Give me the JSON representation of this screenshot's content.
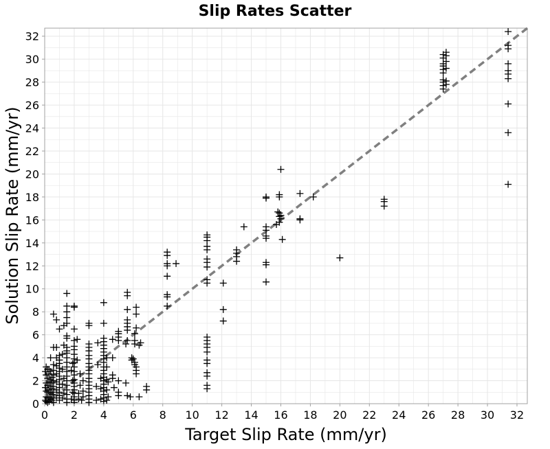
{
  "chart_data": {
    "type": "scatter",
    "title": "Slip Rates Scatter",
    "xlabel": "Target Slip Rate (mm/yr)",
    "ylabel": "Solution Slip Rate (mm/yr)",
    "xlim": [
      0,
      32.7
    ],
    "ylim": [
      0,
      32.7
    ],
    "xticks": [
      "0",
      "2",
      "4",
      "6",
      "8",
      "10",
      "12",
      "14",
      "16",
      "18",
      "20",
      "22",
      "24",
      "26",
      "28",
      "30",
      "32"
    ],
    "yticks": [
      "0",
      "2",
      "4",
      "6",
      "8",
      "10",
      "12",
      "14",
      "16",
      "18",
      "20",
      "22",
      "24",
      "26",
      "28",
      "30",
      "32"
    ],
    "grid": true,
    "marker": "+",
    "reference_line": {
      "style": "dashed",
      "color": "#808080",
      "from": [
        0,
        0
      ],
      "to": [
        32.7,
        32.7
      ]
    },
    "colors": {
      "points": "#000000",
      "reference": "#808080",
      "grid": "#e6e6e6",
      "frame": "#a0a0a0"
    },
    "points": [
      [
        27.0,
        30.4
      ],
      [
        27.0,
        30.1
      ],
      [
        27.0,
        29.6
      ],
      [
        27.0,
        29.4
      ],
      [
        27.0,
        29.1
      ],
      [
        27.0,
        28.8
      ],
      [
        27.0,
        28.2
      ],
      [
        27.0,
        28.0
      ],
      [
        27.0,
        27.7
      ],
      [
        27.0,
        27.4
      ],
      [
        27.2,
        30.6
      ],
      [
        27.2,
        30.3
      ],
      [
        27.2,
        29.8
      ],
      [
        27.2,
        29.2
      ],
      [
        27.2,
        28.1
      ],
      [
        27.2,
        27.8
      ],
      [
        31.4,
        32.4
      ],
      [
        31.4,
        31.2
      ],
      [
        31.4,
        30.9
      ],
      [
        31.4,
        29.6
      ],
      [
        31.4,
        29.0
      ],
      [
        31.4,
        28.7
      ],
      [
        31.4,
        28.3
      ],
      [
        31.4,
        26.1
      ],
      [
        31.4,
        23.6
      ],
      [
        31.4,
        19.1
      ],
      [
        23.0,
        17.8
      ],
      [
        23.0,
        17.6
      ],
      [
        23.0,
        17.2
      ],
      [
        20.0,
        12.7
      ],
      [
        18.2,
        18.0
      ],
      [
        17.3,
        18.3
      ],
      [
        17.3,
        16.1
      ],
      [
        17.3,
        16.0
      ],
      [
        16.0,
        20.4
      ],
      [
        15.9,
        18.2
      ],
      [
        15.9,
        18.0
      ],
      [
        15.9,
        16.6
      ],
      [
        15.9,
        16.3
      ],
      [
        15.9,
        15.8
      ],
      [
        16.0,
        16.4
      ],
      [
        16.0,
        16.1
      ],
      [
        16.1,
        14.3
      ],
      [
        15.8,
        16.7
      ],
      [
        15.7,
        15.6
      ],
      [
        15.0,
        18.0
      ],
      [
        15.0,
        17.9
      ],
      [
        15.0,
        15.4
      ],
      [
        15.0,
        15.1
      ],
      [
        15.0,
        14.6
      ],
      [
        15.0,
        14.4
      ],
      [
        15.0,
        12.3
      ],
      [
        15.0,
        12.1
      ],
      [
        15.0,
        10.6
      ],
      [
        13.5,
        15.4
      ],
      [
        13.0,
        13.4
      ],
      [
        13.0,
        13.1
      ],
      [
        13.0,
        12.8
      ],
      [
        13.0,
        12.4
      ],
      [
        12.1,
        10.5
      ],
      [
        12.1,
        8.2
      ],
      [
        12.1,
        7.2
      ],
      [
        11.0,
        14.7
      ],
      [
        11.0,
        14.5
      ],
      [
        11.0,
        14.2
      ],
      [
        11.0,
        13.7
      ],
      [
        11.0,
        13.4
      ],
      [
        11.0,
        12.6
      ],
      [
        11.0,
        12.3
      ],
      [
        11.0,
        11.9
      ],
      [
        11.0,
        10.8
      ],
      [
        11.0,
        10.5
      ],
      [
        11.0,
        5.8
      ],
      [
        11.0,
        5.5
      ],
      [
        11.0,
        5.2
      ],
      [
        11.0,
        4.9
      ],
      [
        11.0,
        4.5
      ],
      [
        11.0,
        3.8
      ],
      [
        11.0,
        3.5
      ],
      [
        11.0,
        2.7
      ],
      [
        11.0,
        2.4
      ],
      [
        11.0,
        1.6
      ],
      [
        11.0,
        1.3
      ],
      [
        8.9,
        12.2
      ],
      [
        8.3,
        13.2
      ],
      [
        8.3,
        12.9
      ],
      [
        8.3,
        12.2
      ],
      [
        8.3,
        12.0
      ],
      [
        8.3,
        11.1
      ],
      [
        8.3,
        9.5
      ],
      [
        8.3,
        9.3
      ],
      [
        8.3,
        8.5
      ],
      [
        6.9,
        1.5
      ],
      [
        6.9,
        1.2
      ],
      [
        6.4,
        0.6
      ],
      [
        6.5,
        5.3
      ],
      [
        6.4,
        5.1
      ],
      [
        6.2,
        8.4
      ],
      [
        6.2,
        7.8
      ],
      [
        6.2,
        6.6
      ],
      [
        6.1,
        6.1
      ],
      [
        6.1,
        5.5
      ],
      [
        6.1,
        5.2
      ],
      [
        6.2,
        3.2
      ],
      [
        6.2,
        2.9
      ],
      [
        6.2,
        2.6
      ],
      [
        6.1,
        3.6
      ],
      [
        6.1,
        3.4
      ],
      [
        5.9,
        4.0
      ],
      [
        5.9,
        3.8
      ],
      [
        6.0,
        3.9
      ],
      [
        5.8,
        0.6
      ],
      [
        5.6,
        9.7
      ],
      [
        5.6,
        9.4
      ],
      [
        5.6,
        8.2
      ],
      [
        5.6,
        7.3
      ],
      [
        5.6,
        7.0
      ],
      [
        5.6,
        6.7
      ],
      [
        5.6,
        6.4
      ],
      [
        5.6,
        5.5
      ],
      [
        5.5,
        5.2
      ],
      [
        5.5,
        1.8
      ],
      [
        5.6,
        0.7
      ],
      [
        5.0,
        6.3
      ],
      [
        5.0,
        6.1
      ],
      [
        5.0,
        5.8
      ],
      [
        5.0,
        5.5
      ],
      [
        5.0,
        2.0
      ],
      [
        5.0,
        1.0
      ],
      [
        5.0,
        0.7
      ],
      [
        4.6,
        5.6
      ],
      [
        4.6,
        4.0
      ],
      [
        4.6,
        2.5
      ],
      [
        4.6,
        2.2
      ],
      [
        4.7,
        1.4
      ],
      [
        4.0,
        8.8
      ],
      [
        4.0,
        7.0
      ],
      [
        4.0,
        5.7
      ],
      [
        4.0,
        5.4
      ],
      [
        4.0,
        5.1
      ],
      [
        4.0,
        4.8
      ],
      [
        4.0,
        4.5
      ],
      [
        4.0,
        4.2
      ],
      [
        4.0,
        3.9
      ],
      [
        4.0,
        3.6
      ],
      [
        4.0,
        3.2
      ],
      [
        4.0,
        2.9
      ],
      [
        4.0,
        2.6
      ],
      [
        4.0,
        2.3
      ],
      [
        4.0,
        2.0
      ],
      [
        4.0,
        1.7
      ],
      [
        4.0,
        1.4
      ],
      [
        4.0,
        1.1
      ],
      [
        4.0,
        0.8
      ],
      [
        4.0,
        0.5
      ],
      [
        4.0,
        0.2
      ],
      [
        4.2,
        4.0
      ],
      [
        4.2,
        3.2
      ],
      [
        4.2,
        2.1
      ],
      [
        4.2,
        1.2
      ],
      [
        4.2,
        0.3
      ],
      [
        4.3,
        1.9
      ],
      [
        4.3,
        0.6
      ],
      [
        3.8,
        2.2
      ],
      [
        3.8,
        1.3
      ],
      [
        3.8,
        0.4
      ],
      [
        3.6,
        5.3
      ],
      [
        3.6,
        3.4
      ],
      [
        3.5,
        1.5
      ],
      [
        3.5,
        0.3
      ],
      [
        3.0,
        7.0
      ],
      [
        3.0,
        6.8
      ],
      [
        3.0,
        5.2
      ],
      [
        3.0,
        4.9
      ],
      [
        3.0,
        4.6
      ],
      [
        3.0,
        4.2
      ],
      [
        3.0,
        3.9
      ],
      [
        3.0,
        3.5
      ],
      [
        3.0,
        3.2
      ],
      [
        3.0,
        2.9
      ],
      [
        3.0,
        2.6
      ],
      [
        3.0,
        2.2
      ],
      [
        3.0,
        1.9
      ],
      [
        3.0,
        1.6
      ],
      [
        3.0,
        1.3
      ],
      [
        3.0,
        1.0
      ],
      [
        3.0,
        0.7
      ],
      [
        3.0,
        0.4
      ],
      [
        3.0,
        0.1
      ],
      [
        2.6,
        2.0
      ],
      [
        2.6,
        1.1
      ],
      [
        2.6,
        0.6
      ],
      [
        2.5,
        0.3
      ],
      [
        2.4,
        2.6
      ],
      [
        2.4,
        1.6
      ],
      [
        2.3,
        0.9
      ],
      [
        2.3,
        0.4
      ],
      [
        2.2,
        3.8
      ],
      [
        2.2,
        5.6
      ],
      [
        2.0,
        8.5
      ],
      [
        2.0,
        8.4
      ],
      [
        2.0,
        6.5
      ],
      [
        2.0,
        5.5
      ],
      [
        2.0,
        5.0
      ],
      [
        2.0,
        4.7
      ],
      [
        2.0,
        4.3
      ],
      [
        2.0,
        3.9
      ],
      [
        2.0,
        3.6
      ],
      [
        2.0,
        3.2
      ],
      [
        2.0,
        2.8
      ],
      [
        2.0,
        2.5
      ],
      [
        2.0,
        2.1
      ],
      [
        2.0,
        1.8
      ],
      [
        2.0,
        1.5
      ],
      [
        2.0,
        1.2
      ],
      [
        2.0,
        0.9
      ],
      [
        2.0,
        0.6
      ],
      [
        2.0,
        0.3
      ],
      [
        2.0,
        0.1
      ],
      [
        1.9,
        3.5
      ],
      [
        1.9,
        2.0
      ],
      [
        1.9,
        1.0
      ],
      [
        1.8,
        2.9
      ],
      [
        1.8,
        0.4
      ],
      [
        1.5,
        9.6
      ],
      [
        1.5,
        8.5
      ],
      [
        1.5,
        8.0
      ],
      [
        1.5,
        7.5
      ],
      [
        1.5,
        7.0
      ],
      [
        1.5,
        5.9
      ],
      [
        1.5,
        5.7
      ],
      [
        1.5,
        4.9
      ],
      [
        1.5,
        4.6
      ],
      [
        1.5,
        4.4
      ],
      [
        1.5,
        4.0
      ],
      [
        1.5,
        3.6
      ],
      [
        1.5,
        3.2
      ],
      [
        1.5,
        2.8
      ],
      [
        1.5,
        2.4
      ],
      [
        1.5,
        2.0
      ],
      [
        1.5,
        1.6
      ],
      [
        1.5,
        1.2
      ],
      [
        1.5,
        0.8
      ],
      [
        1.5,
        0.4
      ],
      [
        1.5,
        0.1
      ],
      [
        1.3,
        6.8
      ],
      [
        1.3,
        5.1
      ],
      [
        1.3,
        2.2
      ],
      [
        1.3,
        0.9
      ],
      [
        1.2,
        4.3
      ],
      [
        1.2,
        3.0
      ],
      [
        1.2,
        1.7
      ],
      [
        1.2,
        0.5
      ],
      [
        1.0,
        6.5
      ],
      [
        1.0,
        4.2
      ],
      [
        1.0,
        3.8
      ],
      [
        1.0,
        3.5
      ],
      [
        1.0,
        3.1
      ],
      [
        1.0,
        2.8
      ],
      [
        1.0,
        2.4
      ],
      [
        1.0,
        2.1
      ],
      [
        1.0,
        1.7
      ],
      [
        1.0,
        1.4
      ],
      [
        1.0,
        1.0
      ],
      [
        1.0,
        0.7
      ],
      [
        1.0,
        0.3
      ],
      [
        0.8,
        7.3
      ],
      [
        0.8,
        4.9
      ],
      [
        0.8,
        4.0
      ],
      [
        0.8,
        3.3
      ],
      [
        0.8,
        2.6
      ],
      [
        0.8,
        1.9
      ],
      [
        0.8,
        1.2
      ],
      [
        0.8,
        0.5
      ],
      [
        0.6,
        7.8
      ],
      [
        0.6,
        4.9
      ],
      [
        0.6,
        3.4
      ],
      [
        0.6,
        2.9
      ],
      [
        0.6,
        2.5
      ],
      [
        0.6,
        2.0
      ],
      [
        0.6,
        1.5
      ],
      [
        0.6,
        1.0
      ],
      [
        0.6,
        0.5
      ],
      [
        0.6,
        0.1
      ],
      [
        0.5,
        2.3
      ],
      [
        0.5,
        1.8
      ],
      [
        0.5,
        1.3
      ],
      [
        0.5,
        0.8
      ],
      [
        0.5,
        0.3
      ],
      [
        0.4,
        4.0
      ],
      [
        0.4,
        2.8
      ],
      [
        0.4,
        2.1
      ],
      [
        0.4,
        1.5
      ],
      [
        0.4,
        0.9
      ],
      [
        0.4,
        0.4
      ],
      [
        0.3,
        3.0
      ],
      [
        0.3,
        2.6
      ],
      [
        0.3,
        1.9
      ],
      [
        0.3,
        1.2
      ],
      [
        0.3,
        0.6
      ],
      [
        0.3,
        0.2
      ],
      [
        0.2,
        3.0
      ],
      [
        0.2,
        2.2
      ],
      [
        0.2,
        1.6
      ],
      [
        0.2,
        1.0
      ],
      [
        0.2,
        0.5
      ],
      [
        0.2,
        0.1
      ],
      [
        0.1,
        3.2
      ],
      [
        0.1,
        2.5
      ],
      [
        0.1,
        1.8
      ],
      [
        0.1,
        1.1
      ],
      [
        0.1,
        0.6
      ],
      [
        0.1,
        0.2
      ],
      [
        0.05,
        2.8
      ],
      [
        0.05,
        1.4
      ],
      [
        0.05,
        0.3
      ]
    ]
  }
}
